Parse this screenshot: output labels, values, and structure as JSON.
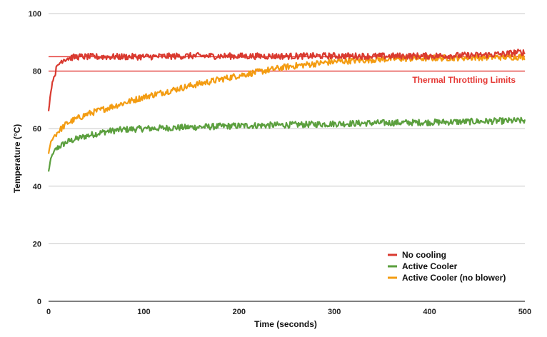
{
  "chart_data": {
    "type": "line",
    "title": "",
    "xlabel": "Time (seconds)",
    "ylabel": "Temperature (°C)",
    "xlim": [
      0,
      500
    ],
    "ylim": [
      0,
      100
    ],
    "xticks": [
      "0",
      "100",
      "200",
      "300",
      "400",
      "500"
    ],
    "yticks": [
      "0",
      "20",
      "40",
      "60",
      "80",
      "100"
    ],
    "grid": "horizontal",
    "legend_position": "bottom-right",
    "annotation": {
      "text": "Thermal Throttling Limits",
      "color": "#e53935"
    },
    "threshold_lines": [
      {
        "value": 85,
        "color": "#e53935"
      },
      {
        "value": 80,
        "color": "#e53935"
      }
    ],
    "series": [
      {
        "name": "No cooling",
        "color": "#d93a30",
        "x": [
          0,
          2,
          4,
          6,
          8,
          10,
          12,
          15,
          20,
          30,
          50,
          100,
          150,
          200,
          250,
          300,
          350,
          400,
          450,
          480,
          490,
          500
        ],
        "y": [
          66,
          72,
          76,
          78.5,
          80.5,
          82,
          83,
          84,
          84.5,
          85,
          85,
          85,
          85.3,
          85.2,
          85.2,
          85.3,
          85.2,
          85.3,
          85.5,
          86,
          86.5,
          86.5
        ]
      },
      {
        "name": "Active Cooler",
        "color": "#5b9f3e",
        "x": [
          0,
          2,
          4,
          6,
          10,
          20,
          40,
          60,
          80,
          100,
          150,
          200,
          250,
          300,
          350,
          400,
          450,
          500
        ],
        "y": [
          45,
          49,
          51,
          52,
          53.5,
          55.5,
          57.5,
          59,
          59.7,
          60,
          60.5,
          61,
          61.3,
          61.7,
          62,
          62.2,
          62.5,
          62.8
        ]
      },
      {
        "name": "Active Cooler (no blower)",
        "color": "#f39c12",
        "x": [
          0,
          2,
          5,
          10,
          20,
          40,
          60,
          80,
          100,
          150,
          200,
          250,
          300,
          350,
          400,
          450,
          500
        ],
        "y": [
          51,
          55,
          57,
          59,
          62,
          65,
          67,
          69,
          71,
          75,
          78.5,
          81.5,
          83.3,
          84.2,
          84.5,
          84.8,
          85
        ]
      }
    ]
  }
}
